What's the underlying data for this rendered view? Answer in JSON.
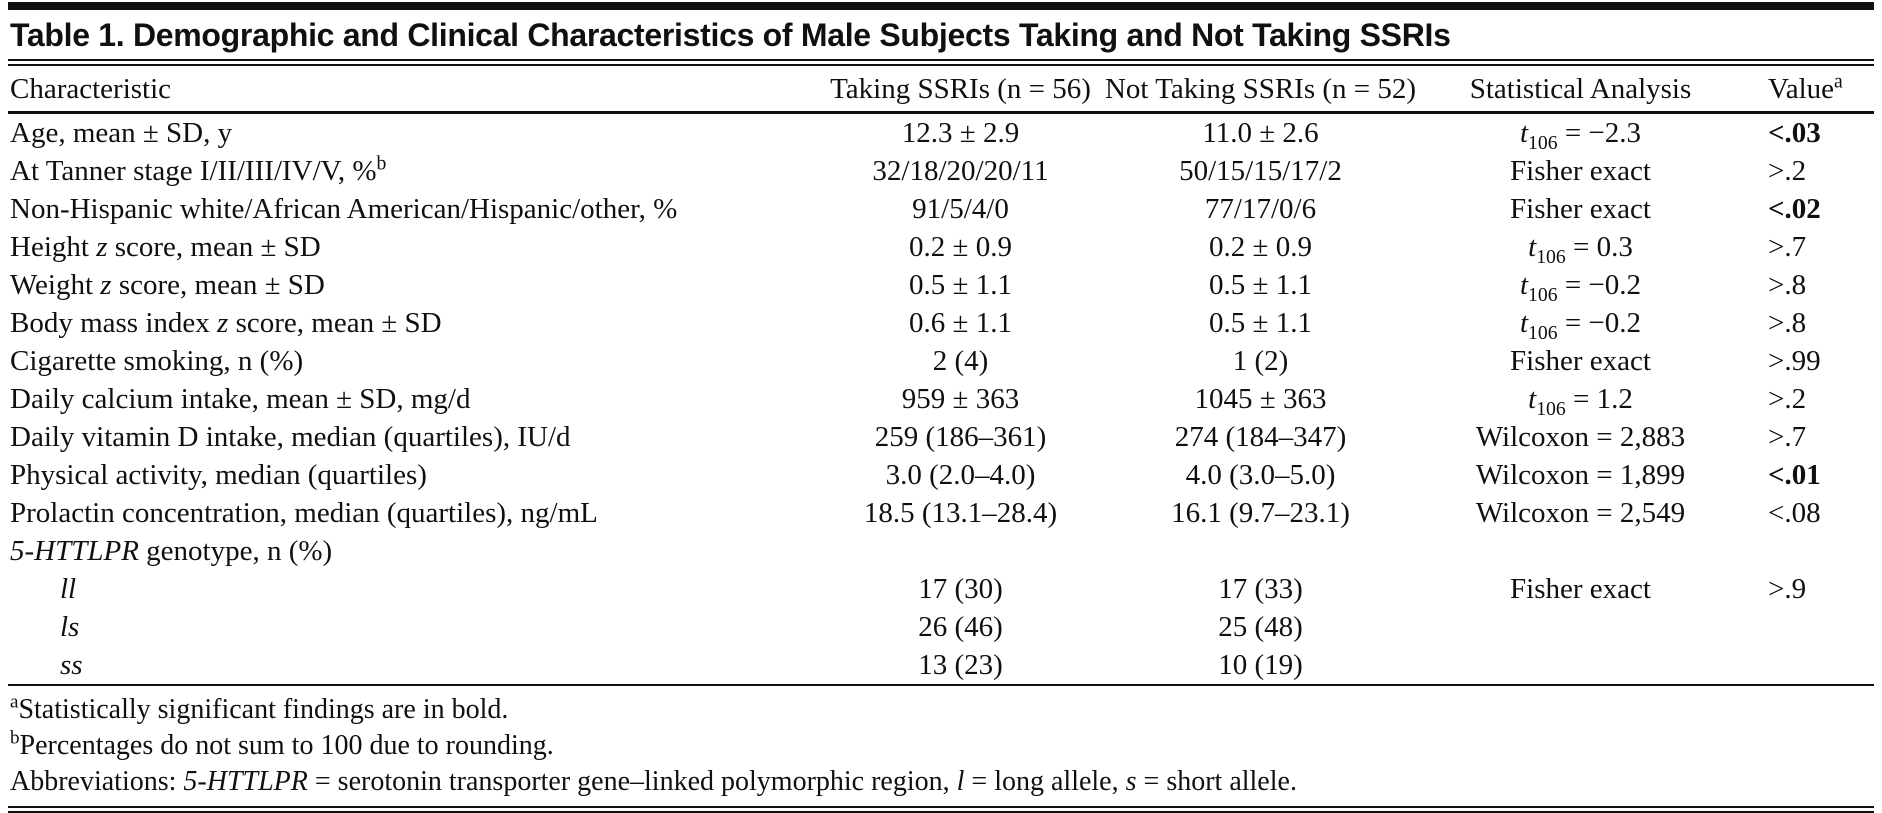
{
  "colors": {
    "ink": "#101010",
    "background": "#ffffff"
  },
  "table": {
    "title": "Table 1. Demographic and Clinical Characteristics of Male Subjects Taking and Not Taking SSRIs",
    "columns": {
      "characteristic": "Characteristic",
      "taking": "Taking SSRIs (n = 56)",
      "not_taking": "Not Taking SSRIs (n = 52)",
      "stat": "Statistical Analysis",
      "value": "Value^a^"
    },
    "rows": [
      {
        "label": "Age, mean ± SD, y",
        "indent": false,
        "taking": "12.3 ± 2.9",
        "not_taking": "11.0 ± 2.6",
        "stat": "*t*~106~ = −2.3",
        "value": "<.03",
        "significant": true
      },
      {
        "label": "At Tanner stage I/II/III/IV/V, %^b^",
        "indent": false,
        "taking": "32/18/20/20/11",
        "not_taking": "50/15/15/17/2",
        "stat": "Fisher exact",
        "value": ">.2",
        "significant": false
      },
      {
        "label": "Non-Hispanic white/African American/Hispanic/other, %",
        "indent": false,
        "taking": "91/5/4/0",
        "not_taking": "77/17/0/6",
        "stat": "Fisher exact",
        "value": "<.02",
        "significant": true
      },
      {
        "label": "Height *z* score, mean ± SD",
        "indent": false,
        "taking": "0.2 ± 0.9",
        "not_taking": "0.2 ± 0.9",
        "stat": "*t*~106~ = 0.3",
        "value": ">.7",
        "significant": false
      },
      {
        "label": "Weight *z* score, mean ± SD",
        "indent": false,
        "taking": "0.5 ± 1.1",
        "not_taking": "0.5 ± 1.1",
        "stat": "*t*~106~ = −0.2",
        "value": ">.8",
        "significant": false
      },
      {
        "label": "Body mass index *z* score, mean ± SD",
        "indent": false,
        "taking": "0.6 ± 1.1",
        "not_taking": "0.5 ± 1.1",
        "stat": "*t*~106~ = −0.2",
        "value": ">.8",
        "significant": false
      },
      {
        "label": "Cigarette smoking, n (%)",
        "indent": false,
        "taking": "2 (4)",
        "not_taking": "1 (2)",
        "stat": "Fisher exact",
        "value": ">.99",
        "significant": false
      },
      {
        "label": "Daily calcium intake, mean ± SD, mg/d",
        "indent": false,
        "taking": "959 ± 363",
        "not_taking": "1045 ± 363",
        "stat": "*t*~106~ = 1.2",
        "value": ">.2",
        "significant": false
      },
      {
        "label": "Daily vitamin D intake, median (quartiles), IU/d",
        "indent": false,
        "taking": "259 (186–361)",
        "not_taking": "274 (184–347)",
        "stat": "Wilcoxon = 2,883",
        "value": ">.7",
        "significant": false
      },
      {
        "label": "Physical activity, median (quartiles)",
        "indent": false,
        "taking": "3.0 (2.0–4.0)",
        "not_taking": "4.0 (3.0–5.0)",
        "stat": "Wilcoxon = 1,899",
        "value": "<.01",
        "significant": true
      },
      {
        "label": "Prolactin concentration, median (quartiles), ng/mL",
        "indent": false,
        "taking": "18.5 (13.1–28.4)",
        "not_taking": "16.1 (9.7–23.1)",
        "stat": "Wilcoxon = 2,549",
        "value": "<.08",
        "significant": false
      },
      {
        "label": "*5-HTTLPR* genotype, n (%)",
        "indent": false,
        "taking": "",
        "not_taking": "",
        "stat": "",
        "value": "",
        "significant": false
      },
      {
        "label": "*ll*",
        "indent": true,
        "taking": "17 (30)",
        "not_taking": "17 (33)",
        "stat": "Fisher exact",
        "value": ">.9",
        "significant": false
      },
      {
        "label": "*ls*",
        "indent": true,
        "taking": "26 (46)",
        "not_taking": "25 (48)",
        "stat": "",
        "value": "",
        "significant": false
      },
      {
        "label": "*ss*",
        "indent": true,
        "taking": "13 (23)",
        "not_taking": "10 (19)",
        "stat": "",
        "value": "",
        "significant": false
      }
    ],
    "footnotes": [
      "^a^Statistically significant findings are in bold.",
      "^b^Percentages do not sum to 100 due to rounding.",
      "Abbreviations: *5-HTTLPR* = serotonin transporter gene–linked polymorphic region, *l* = long allele, *s* = short allele."
    ]
  }
}
